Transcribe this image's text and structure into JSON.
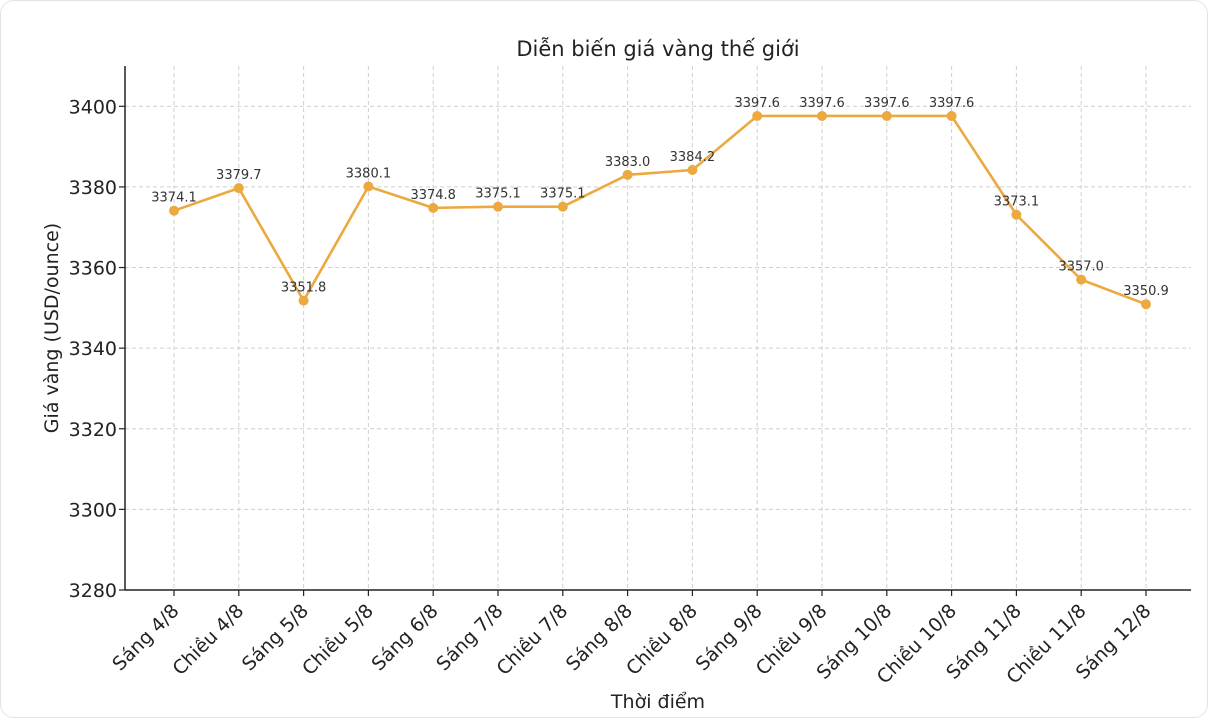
{
  "chart_data": {
    "type": "line",
    "title": "Diễn biến giá vàng thế giới",
    "xlabel": "Thời điểm",
    "ylabel": "Giá vàng (USD/ounce)",
    "ylim": [
      3280,
      3410
    ],
    "yticks": [
      3280,
      3300,
      3320,
      3340,
      3360,
      3380,
      3400
    ],
    "grid": true,
    "color": "#EBA93F",
    "categories": [
      "Sáng 4/8",
      "Chiều 4/8",
      "Sáng 5/8",
      "Chiều 5/8",
      "Sáng 6/8",
      "Sáng 7/8",
      "Chiều 7/8",
      "Sáng 8/8",
      "Chiều 8/8",
      "Sáng 9/8",
      "Chiều 9/8",
      "Sáng 10/8",
      "Chiều 10/8",
      "Sáng 11/8",
      "Chiều 11/8",
      "Sáng 12/8"
    ],
    "values": [
      3374.1,
      3379.7,
      3351.8,
      3380.1,
      3374.8,
      3375.1,
      3375.1,
      3383.0,
      3384.2,
      3397.6,
      3397.6,
      3397.6,
      3397.6,
      3373.1,
      3357.0,
      3350.9
    ]
  }
}
